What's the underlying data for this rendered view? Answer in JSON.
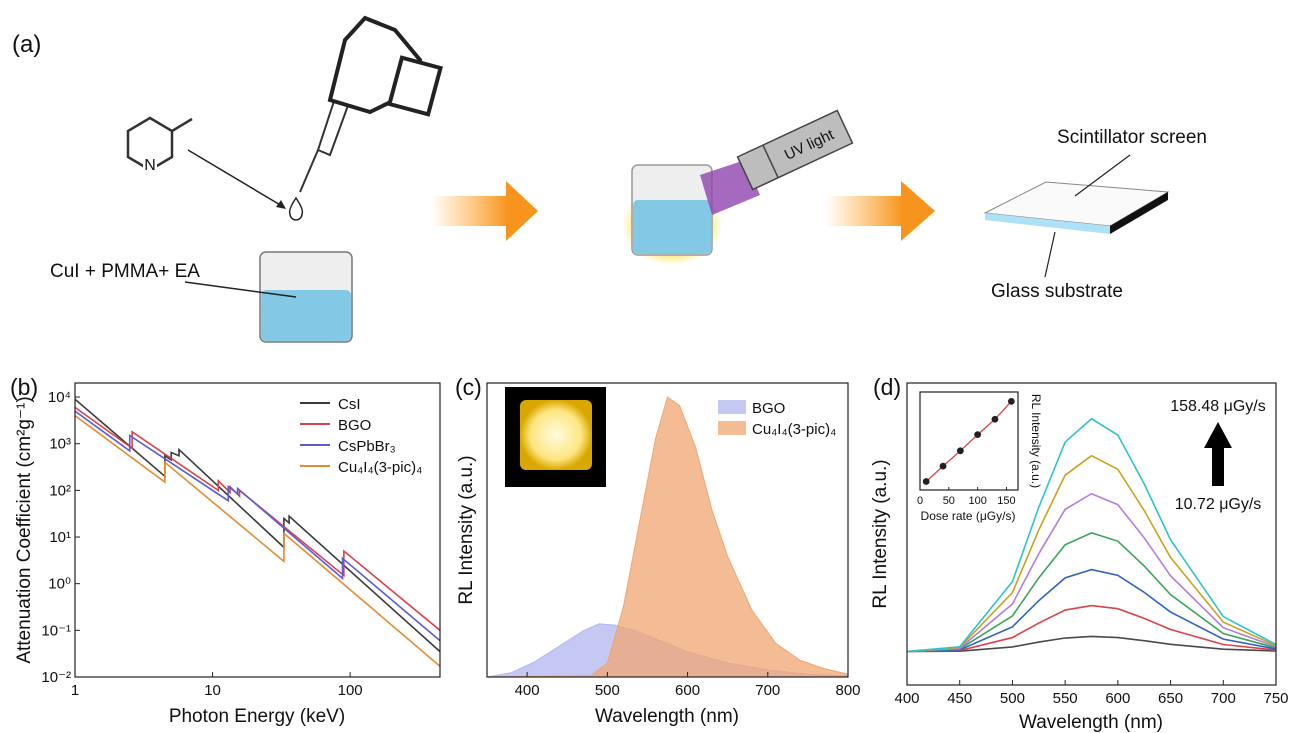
{
  "diagram": {
    "panel_label": "(a)",
    "molecule_atom": "N",
    "solution": "CuI + PMMA+ EA",
    "uv_light": "UV light",
    "screen": "Scintillator screen",
    "substrate": "Glass substrate"
  },
  "chart_data": [
    {
      "type": "line",
      "panel_label": "(b)",
      "xlabel": "Photon Energy (keV)",
      "ylabel": "Attenuation Coefficient (cm²g⁻¹)",
      "xlog": true,
      "ylog": true,
      "xlim": [
        1,
        450
      ],
      "ylim": [
        0.01,
        20000
      ],
      "xticks": [
        1,
        10,
        100
      ],
      "yticks": [
        {
          "value": 0.01,
          "label": "10⁻²"
        },
        {
          "value": 0.1,
          "label": "10⁻¹"
        },
        {
          "value": 1,
          "label": "10⁰"
        },
        {
          "value": 10,
          "label": "10¹"
        },
        {
          "value": 100,
          "label": "10²"
        },
        {
          "value": 1000,
          "label": "10³"
        },
        {
          "value": 10000,
          "label": "10⁴"
        }
      ],
      "legend": "upper right",
      "series": [
        {
          "name": "CsI",
          "color": "#3a3a3a",
          "x": [
            1,
            4.5,
            4.5,
            5.0,
            5.0,
            5.7,
            5.7,
            33,
            33,
            36,
            36,
            450
          ],
          "values": [
            9000,
            200,
            550,
            450,
            650,
            550,
            750,
            6,
            25,
            20,
            28,
            0.035
          ]
        },
        {
          "name": "BGO",
          "color": "#d9434c",
          "x": [
            1,
            2.6,
            2.6,
            11,
            11,
            13.4,
            13.4,
            15.7,
            15.7,
            90,
            90,
            450
          ],
          "values": [
            6000,
            800,
            1800,
            100,
            160,
            90,
            120,
            75,
            100,
            1.5,
            5,
            0.1
          ]
        },
        {
          "name": "CsPbBr₃",
          "color": "#5b5bd6",
          "x": [
            1,
            2.5,
            2.5,
            13,
            13,
            15.2,
            15.2,
            88,
            88,
            450
          ],
          "values": [
            5000,
            700,
            1500,
            60,
            120,
            85,
            110,
            1.3,
            3.5,
            0.06
          ]
        },
        {
          "name": "Cu₄I₄(3-pic)₄",
          "color": "#e88a2e",
          "x": [
            1,
            4.5,
            4.5,
            33,
            33,
            450
          ],
          "values": [
            4000,
            150,
            400,
            3,
            12,
            0.017
          ]
        }
      ]
    },
    {
      "type": "area",
      "panel_label": "(c)",
      "xlabel": "Wavelength (nm)",
      "ylabel": "RL Intensity (a.u.)",
      "xlim": [
        350,
        800
      ],
      "ylim": [
        0,
        1.05
      ],
      "xticks": [
        400,
        500,
        600,
        700,
        800
      ],
      "legend": "upper right",
      "series": [
        {
          "name": "BGO",
          "color": "#b3b5f0",
          "x": [
            350,
            380,
            410,
            440,
            470,
            490,
            510,
            540,
            570,
            600,
            650,
            700,
            750,
            800
          ],
          "values": [
            0,
            0.015,
            0.055,
            0.11,
            0.165,
            0.19,
            0.185,
            0.16,
            0.125,
            0.09,
            0.05,
            0.025,
            0.01,
            0.004
          ]
        },
        {
          "name": "Cu₄I₄(3-pic)₄",
          "color": "#f0a571",
          "x": [
            350,
            480,
            500,
            520,
            540,
            560,
            575,
            590,
            610,
            630,
            650,
            680,
            710,
            740,
            770,
            800
          ],
          "values": [
            0,
            0.005,
            0.05,
            0.25,
            0.55,
            0.85,
            1.0,
            0.97,
            0.82,
            0.6,
            0.43,
            0.24,
            0.12,
            0.06,
            0.03,
            0.01
          ]
        }
      ]
    },
    {
      "type": "line",
      "panel_label": "(d)",
      "xlabel": "Wavelength (nm)",
      "ylabel": "RL Intensity (a.u.)",
      "xlim": [
        400,
        750
      ],
      "ylim": [
        -1.5,
        12
      ],
      "xticks": [
        400,
        450,
        500,
        550,
        600,
        650,
        700,
        750
      ],
      "x": [
        400,
        450,
        500,
        525,
        550,
        575,
        600,
        625,
        650,
        700,
        750
      ],
      "annotations": [
        "158.48 μGy/s",
        "10.72 μGy/s"
      ],
      "series": [
        {
          "color": "#4a4a4a",
          "values": [
            0,
            0.01,
            0.2,
            0.42,
            0.6,
            0.67,
            0.62,
            0.48,
            0.32,
            0.1,
            0.02
          ]
        },
        {
          "color": "#d9434c",
          "values": [
            0,
            0.04,
            0.62,
            1.27,
            1.85,
            2.05,
            1.91,
            1.48,
            0.98,
            0.31,
            0.06
          ]
        },
        {
          "color": "#2e63c4",
          "values": [
            0,
            0.07,
            1.1,
            2.27,
            3.29,
            3.66,
            3.4,
            2.64,
            1.76,
            0.55,
            0.11
          ]
        },
        {
          "color": "#3aa55a",
          "values": [
            0,
            0.11,
            1.59,
            3.29,
            4.77,
            5.3,
            4.93,
            3.82,
            2.54,
            0.8,
            0.16
          ]
        },
        {
          "color": "#b07ee0",
          "values": [
            0,
            0.14,
            2.12,
            4.37,
            6.35,
            7.05,
            6.56,
            5.08,
            3.38,
            1.06,
            0.21
          ]
        },
        {
          "color": "#c9a21e",
          "values": [
            0,
            0.18,
            2.63,
            5.43,
            7.88,
            8.75,
            8.14,
            6.3,
            4.2,
            1.31,
            0.26
          ]
        },
        {
          "color": "#2cc3cf",
          "values": [
            0,
            0.21,
            3.12,
            6.45,
            9.36,
            10.4,
            9.67,
            7.49,
            4.99,
            1.56,
            0.31
          ]
        }
      ]
    },
    {
      "type": "scatter",
      "xlabel": "Dose rate (μGy/s)",
      "ylabel": "RL Intensity (a.u.)",
      "xlim": [
        0,
        170
      ],
      "ylim": [
        0,
        11.5
      ],
      "xticks": [
        0,
        50,
        100,
        150
      ],
      "line": true,
      "color": "#222222",
      "line_color": "#d9434c",
      "x": [
        10.72,
        40,
        70,
        100,
        130,
        158.48
      ],
      "values": [
        1,
        2.8,
        4.6,
        6.5,
        8.3,
        10.4
      ]
    }
  ]
}
